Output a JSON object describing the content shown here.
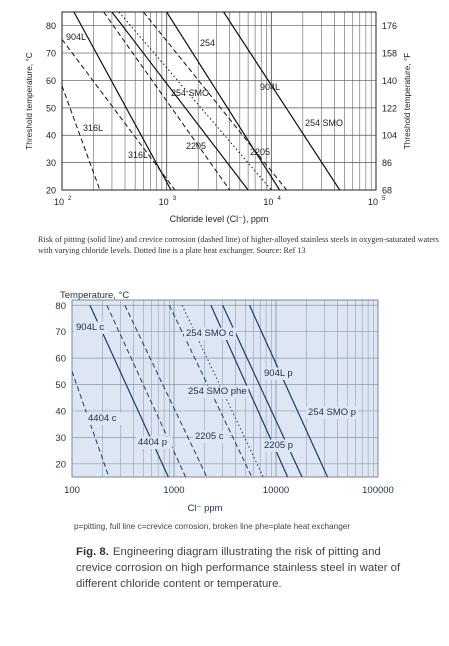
{
  "chart_data": [
    {
      "type": "line",
      "xlabel": "Chloride level (Cl⁻), ppm",
      "ylabel": "Threshold temperature, °C",
      "ylabel_right": "Threshold temperature, °F",
      "x_scale": "log",
      "xlim": [
        100,
        100000
      ],
      "ylim": [
        20,
        85
      ],
      "x_ticks": [
        "10",
        "10",
        "10",
        "10"
      ],
      "x_tick_exponents": [
        "2",
        "3",
        "4",
        "5"
      ],
      "y_ticks": [
        "20",
        "30",
        "40",
        "50",
        "60",
        "70",
        "80"
      ],
      "y_ticks_right": [
        "68",
        "86",
        "104",
        "122",
        "140",
        "158",
        "176"
      ],
      "grid": true,
      "series": [
        {
          "name": "904L",
          "style": "solid",
          "points": [
            [
              300,
              85
            ],
            [
              6000,
              20
            ]
          ]
        },
        {
          "name": "904L",
          "style": "dashed",
          "points": [
            [
              100,
              75
            ],
            [
              1200,
              20
            ]
          ]
        },
        {
          "name": "316L",
          "style": "solid",
          "points": [
            [
              130,
              85
            ],
            [
              1100,
              20
            ]
          ]
        },
        {
          "name": "316L",
          "style": "dashed",
          "points": [
            [
              100,
              58
            ],
            [
              230,
              20
            ]
          ]
        },
        {
          "name": "2205",
          "style": "solid",
          "points": [
            [
              1000,
              85
            ],
            [
              12000,
              20
            ]
          ]
        },
        {
          "name": "2205",
          "style": "dashed",
          "points": [
            [
              250,
              85
            ],
            [
              4000,
              20
            ]
          ]
        },
        {
          "name": "254 SMO",
          "style": "solid",
          "points": [
            [
              3500,
              85
            ],
            [
              45000,
              20
            ]
          ]
        },
        {
          "name": "254 SMO",
          "style": "dashed",
          "points": [
            [
              600,
              85
            ],
            [
              14000,
              20
            ]
          ]
        },
        {
          "name": "254",
          "style": "dotted",
          "points": [
            [
              350,
              85
            ],
            [
              10000,
              20
            ]
          ]
        }
      ],
      "annotations": [
        "904L",
        "254",
        "254 SMO",
        "904L",
        "254 SMO",
        "316L",
        "2205",
        "316L",
        "2205"
      ]
    },
    {
      "type": "line",
      "ylabel": "Temperature, °C",
      "xlabel": "Cl⁻ ppm",
      "x_scale": "log",
      "xlim": [
        100,
        100000
      ],
      "ylim": [
        15,
        82
      ],
      "x_ticks": [
        "100",
        "1000",
        "10000",
        "100000"
      ],
      "y_ticks": [
        "20",
        "30",
        "40",
        "50",
        "60",
        "70",
        "80"
      ],
      "grid": true,
      "series": [
        {
          "name": "904L p",
          "style": "solid",
          "points": [
            [
              2300,
              80
            ],
            [
              13000,
              15
            ]
          ]
        },
        {
          "name": "904L c",
          "style": "dashed",
          "points": [
            [
              220,
              80
            ],
            [
              1300,
              15
            ]
          ]
        },
        {
          "name": "4404 p",
          "style": "solid",
          "points": [
            [
              150,
              80
            ],
            [
              880,
              15
            ]
          ]
        },
        {
          "name": "4404 c",
          "style": "dashed",
          "points": [
            [
              100,
              55
            ],
            [
              230,
              15
            ]
          ]
        },
        {
          "name": "254 SMO p",
          "style": "solid",
          "points": [
            [
              5500,
              80
            ],
            [
              32000,
              15
            ]
          ]
        },
        {
          "name": "254 SMO c",
          "style": "dashed",
          "points": [
            [
              900,
              80
            ],
            [
              5800,
              15
            ]
          ]
        },
        {
          "name": "2205 p",
          "style": "solid",
          "points": [
            [
              3000,
              80
            ],
            [
              18000,
              15
            ]
          ]
        },
        {
          "name": "2205 c",
          "style": "dashed",
          "points": [
            [
              330,
              80
            ],
            [
              2100,
              15
            ]
          ]
        },
        {
          "name": "254 SMO phe",
          "style": "dotted",
          "points": [
            [
              1200,
              80
            ],
            [
              7500,
              15
            ]
          ]
        }
      ],
      "annotations": [
        "904L c",
        "254 SMO c",
        "904L p",
        "254 SMO phe",
        "254 SMO p",
        "4404 c",
        "2205 c",
        "4404 p",
        "2205 p"
      ]
    }
  ],
  "caption1": "Risk of pitting (solid line) and crevice corrosion (dashed line) of higher-alloyed stainless steels in oxygen-saturated waters with varying chloride levels. Dotted line is a plate heat exchanger. Source: Ref 13",
  "legend_note2": "p=pitting, full line c=crevice corrosion, broken line  phe=plate heat exchanger",
  "caption2": {
    "label": "Fig. 8.",
    "text": "Engineering diagram illustrating the risk of pitting and crevice corrosion on high performance stainless steel in water of different chloride content or temperature."
  }
}
